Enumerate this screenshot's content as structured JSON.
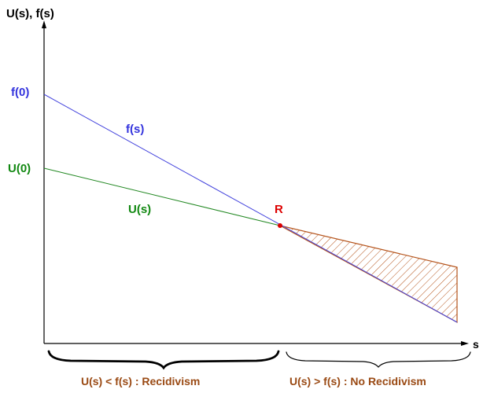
{
  "labels": {
    "y_axis": "U(s), f(s)",
    "x_axis": "s",
    "f0": "f(0)",
    "u0": "U(0)",
    "f_curve": "f(s)",
    "u_curve": "U(s)",
    "r_point": "R",
    "left_region": "U(s) < f(s) : Recidivism",
    "right_region": "U(s) > f(s) : No Recidivism"
  },
  "colors": {
    "axis": "#000000",
    "f_line": "#4444dd",
    "u_line": "#228822",
    "f_text": "#3333dd",
    "u_text": "#118811",
    "r_point": "#dd0000",
    "hatch": "#b5541c",
    "region_text": "#9a4a14",
    "brace": "#000000"
  }
}
